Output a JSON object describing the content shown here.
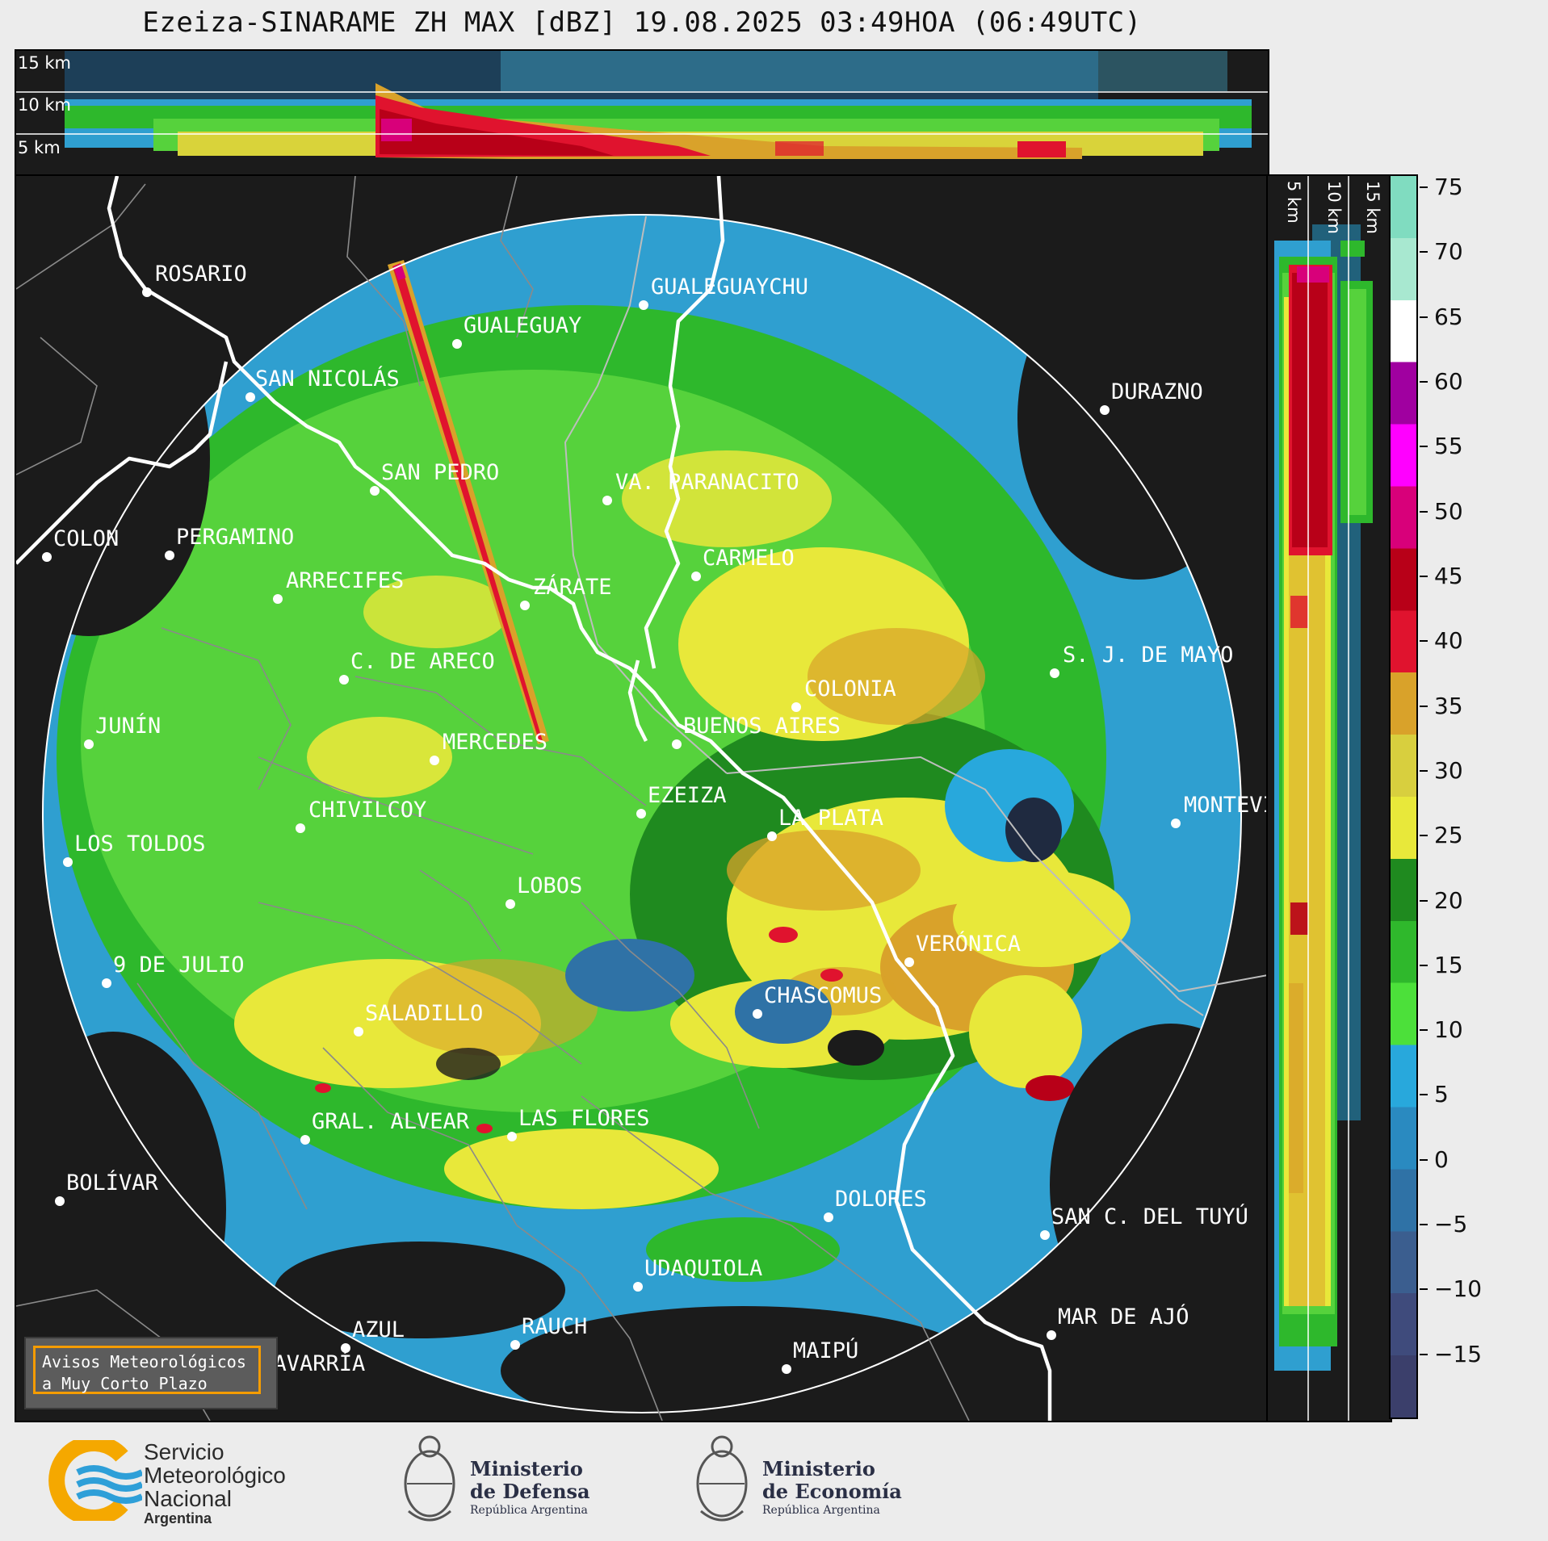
{
  "title": "Ezeiza-SINARAME ZH MAX [dBZ] 19.08.2025 03:49HOA (06:49UTC)",
  "top_panel": {
    "km_labels": [
      "15 km",
      "10 km",
      "5 km"
    ]
  },
  "side_panel": {
    "km_labels": [
      "5 km",
      "10 km",
      "15 km"
    ]
  },
  "cities": [
    {
      "name": "ROSARIO"
    },
    {
      "name": "GUALEGUAYCHU"
    },
    {
      "name": "GUALEGUAY"
    },
    {
      "name": "SAN NICOLÁS"
    },
    {
      "name": "DURAZNO"
    },
    {
      "name": "SAN PEDRO"
    },
    {
      "name": "VA. PARANACITO"
    },
    {
      "name": "COLON"
    },
    {
      "name": "PERGAMINO"
    },
    {
      "name": "CARMELO"
    },
    {
      "name": "ARRECIFES"
    },
    {
      "name": "ZÁRATE"
    },
    {
      "name": "C. DE ARECO"
    },
    {
      "name": "S. J. DE MAYO"
    },
    {
      "name": "COLONIA"
    },
    {
      "name": "JUNÍN"
    },
    {
      "name": "BUENOS AIRES"
    },
    {
      "name": "MERCEDES"
    },
    {
      "name": "EZEIZA"
    },
    {
      "name": "MONTEVIDEO"
    },
    {
      "name": "CHIVILCOY"
    },
    {
      "name": "LA PLATA"
    },
    {
      "name": "LOS TOLDOS"
    },
    {
      "name": "LOBOS"
    },
    {
      "name": "VERÓNICA"
    },
    {
      "name": "9 DE JULIO"
    },
    {
      "name": "CHASCOMUS"
    },
    {
      "name": "SALADILLO"
    },
    {
      "name": "GRAL. ALVEAR"
    },
    {
      "name": "LAS FLORES"
    },
    {
      "name": "BOLÍVAR"
    },
    {
      "name": "DOLORES"
    },
    {
      "name": "SAN C. DEL TUYÚ"
    },
    {
      "name": "UDAQUIOLA"
    },
    {
      "name": "MAR DE AJÓ"
    },
    {
      "name": "AZUL"
    },
    {
      "name": "RAUCH"
    },
    {
      "name": "OLAVARRÍA"
    },
    {
      "name": "MAIPÚ"
    }
  ],
  "colorbar": {
    "unit": "dBZ",
    "ticks": [
      "75",
      "70",
      "65",
      "60",
      "55",
      "50",
      "45",
      "40",
      "35",
      "30",
      "25",
      "20",
      "15",
      "10",
      "5",
      "0",
      "−5",
      "−10",
      "−15"
    ],
    "range": [
      -20,
      76
    ],
    "colors": [
      "#3b3f6b",
      "#3f4b7c",
      "#3b5e8f",
      "#2f72a6",
      "#2a8ac0",
      "#28a8dc",
      "#4ce03a",
      "#2fb82c",
      "#1f8a1f",
      "#e8e83a",
      "#d8cf3e",
      "#d9a22a",
      "#e0132e",
      "#b80018",
      "#d8007a",
      "#ff00ff",
      "#a000a0",
      "#ffffff",
      "#a8e8d0",
      "#80dcc0"
    ]
  },
  "warning_box": {
    "line1": "Avisos Meteorológicos",
    "line2": "a Muy Corto Plazo"
  },
  "logos": {
    "smn": {
      "line1": "Servicio",
      "line2": "Meteorológico",
      "line3": "Nacional",
      "line4": "Argentina"
    },
    "defensa": {
      "line1": "Ministerio",
      "line2": "de Defensa",
      "line3": "República Argentina"
    },
    "economia": {
      "line1": "Ministerio",
      "line2": "de Economía",
      "line3": "República Argentina"
    }
  }
}
